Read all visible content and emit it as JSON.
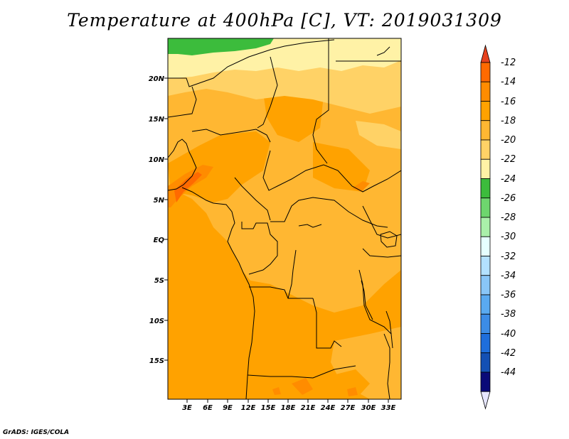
{
  "title": "Temperature at 400hPa [C], VT: 2019031309",
  "credit": "GrADS: IGES/COLA",
  "lon_ticks": [
    "3E",
    "6E",
    "9E",
    "12E",
    "15E",
    "18E",
    "21E",
    "24E",
    "27E",
    "30E",
    "33E"
  ],
  "lat_ticks": [
    "20N",
    "15N",
    "10N",
    "5N",
    "EQ",
    "5S",
    "10S",
    "15S"
  ],
  "colorbar": {
    "labels": [
      "-12",
      "-14",
      "-16",
      "-18",
      "-20",
      "-22",
      "-24",
      "-26",
      "-28",
      "-30",
      "-32",
      "-34",
      "-36",
      "-38",
      "-40",
      "-42",
      "-44"
    ],
    "colors": [
      "#ff6a00",
      "#ff8c00",
      "#ffa200",
      "#ffb732",
      "#ffd266",
      "#fff2a6",
      "#3cbc3c",
      "#6ed66e",
      "#aaf0aa",
      "#e6ffff",
      "#b3e1ff",
      "#89c6f7",
      "#5aaaf0",
      "#3c8ce6",
      "#1e6edc",
      "#1450b4",
      "#0a0a78"
    ],
    "top_arrow_color": "#e6421e",
    "bottom_arrow_color": "#e6e6ff"
  },
  "map_colors": {
    "base": "#ffa200",
    "level_m16": "#ffb732",
    "level_m18": "#ffd266",
    "level_m20": "#fff2a6",
    "level_m22": "#3cbc3c",
    "level_m14": "#ff8c00",
    "level_m12": "#ff6a00"
  }
}
